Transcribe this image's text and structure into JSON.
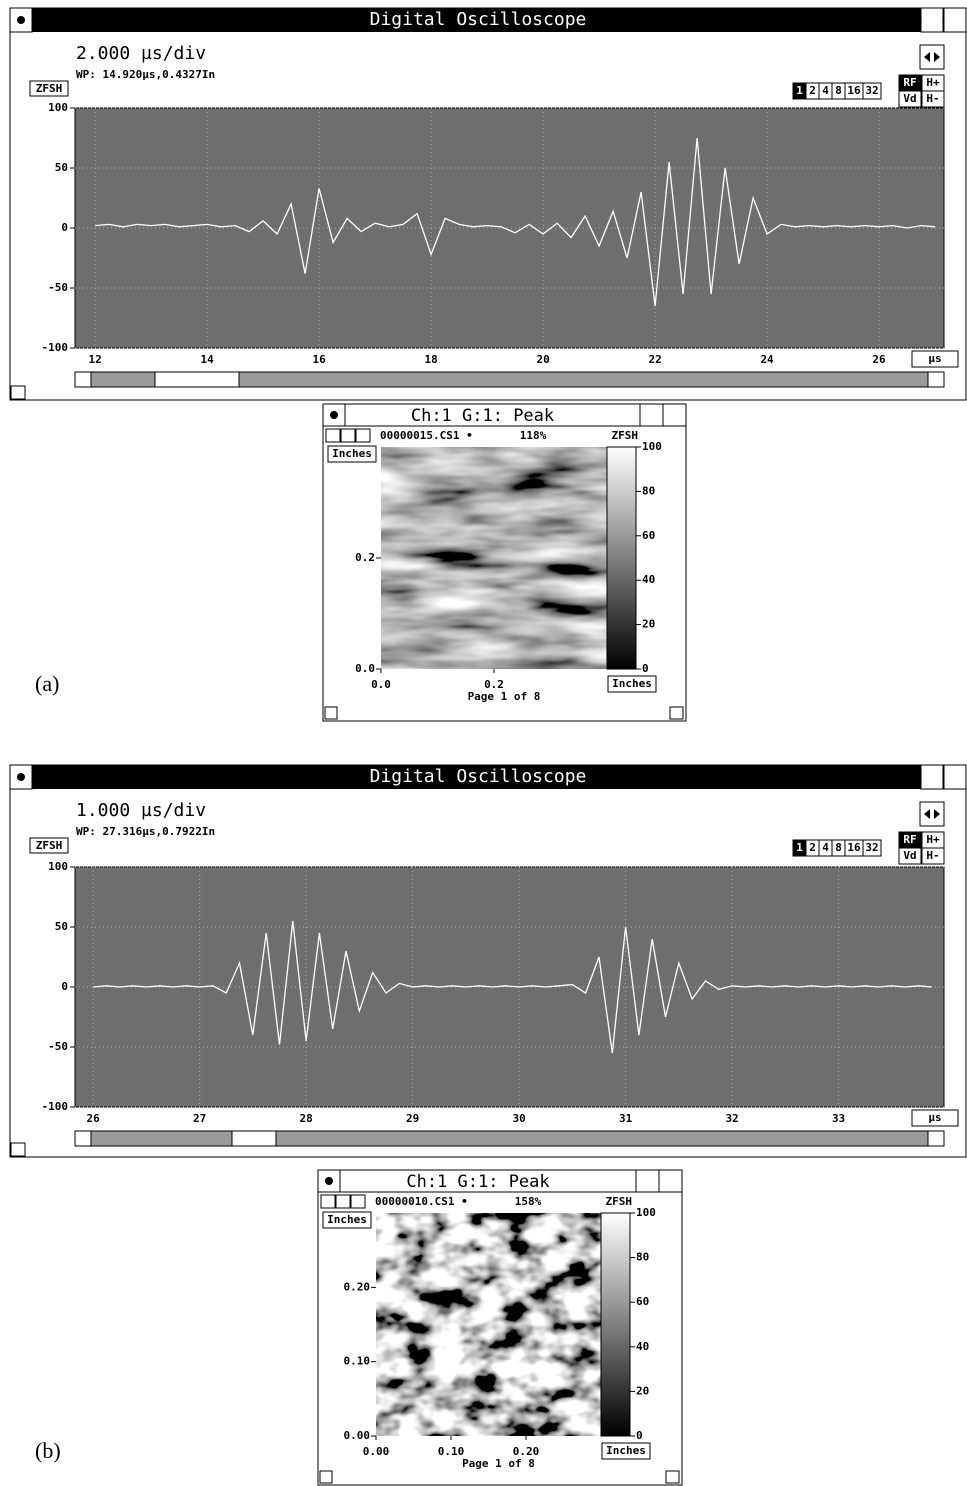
{
  "labels": [
    "(a)",
    "(b)"
  ],
  "chart_data": [
    {
      "type": "line",
      "title": "Digital Oscilloscope",
      "timebase": "2.000 µs/div",
      "cursor": "WP: 14.920µs,0.4327In",
      "scale_button": "ZFSH",
      "zoom_buttons": [
        "1",
        "2",
        "4",
        "8",
        "16",
        "32"
      ],
      "mode_buttons": [
        "RF",
        "H+",
        "Vd",
        "H-"
      ],
      "x_unit": "µs",
      "xlim": [
        11.64,
        27.16
      ],
      "ylim": [
        -100,
        100
      ],
      "xticks": [
        12,
        14,
        16,
        18,
        20,
        22,
        24,
        26
      ],
      "yticks": [
        100,
        50,
        0,
        -50,
        -100
      ],
      "grid": true,
      "background": "#6e6e6e",
      "x": [
        12,
        12.25,
        12.5,
        12.75,
        13,
        13.25,
        13.5,
        13.75,
        14,
        14.25,
        14.5,
        14.75,
        15,
        15.25,
        15.5,
        15.75,
        16,
        16.25,
        16.5,
        16.75,
        17,
        17.25,
        17.5,
        17.75,
        18,
        18.25,
        18.5,
        18.75,
        19,
        19.25,
        19.5,
        19.75,
        20,
        20.25,
        20.5,
        20.75,
        21,
        21.25,
        21.5,
        21.75,
        22,
        22.25,
        22.5,
        22.75,
        23,
        23.25,
        23.5,
        23.75,
        24,
        24.25,
        24.5,
        24.75,
        25,
        25.25,
        25.5,
        25.75,
        26,
        26.25,
        26.5,
        26.75,
        27
      ],
      "series": [
        {
          "color": "#ffffff",
          "values": [
            2,
            3,
            1,
            3,
            2,
            3,
            1,
            2,
            3,
            1,
            2,
            -3,
            6,
            -5,
            20,
            -38,
            33,
            -12,
            8,
            -3,
            4,
            1,
            3,
            12,
            -22,
            8,
            3,
            1,
            2,
            1,
            -4,
            3,
            -5,
            4,
            -8,
            10,
            -15,
            14,
            -25,
            30,
            -65,
            55,
            -55,
            75,
            -55,
            50,
            -30,
            25,
            -5,
            3,
            1,
            2,
            1,
            2,
            1,
            2,
            1,
            2,
            0,
            2,
            1
          ]
        }
      ]
    },
    {
      "type": "line",
      "title": "Digital Oscilloscope",
      "timebase": "1.000 µs/div",
      "cursor": "WP: 27.316µs,0.7922In",
      "scale_button": "ZFSH",
      "zoom_buttons": [
        "1",
        "2",
        "4",
        "8",
        "16",
        "32"
      ],
      "mode_buttons": [
        "RF",
        "H+",
        "Vd",
        "H-"
      ],
      "x_unit": "µs",
      "xlim": [
        25.83,
        33.99
      ],
      "ylim": [
        -100,
        100
      ],
      "xticks": [
        26,
        27,
        28,
        29,
        30,
        31,
        32,
        33
      ],
      "yticks": [
        100,
        50,
        0,
        -50,
        -100
      ],
      "grid": true,
      "background": "#6e6e6e",
      "x": [
        26,
        26.125,
        26.25,
        26.375,
        26.5,
        26.625,
        26.75,
        26.875,
        27,
        27.125,
        27.25,
        27.375,
        27.5,
        27.625,
        27.75,
        27.875,
        28,
        28.125,
        28.25,
        28.375,
        28.5,
        28.625,
        28.75,
        28.875,
        29,
        29.125,
        29.25,
        29.375,
        29.5,
        29.625,
        29.75,
        29.875,
        30,
        30.125,
        30.25,
        30.375,
        30.5,
        30.625,
        30.75,
        30.875,
        31,
        31.125,
        31.25,
        31.375,
        31.5,
        31.625,
        31.75,
        31.875,
        32,
        32.125,
        32.25,
        32.375,
        32.5,
        32.625,
        32.75,
        32.875,
        33,
        33.125,
        33.25,
        33.375,
        33.5,
        33.625,
        33.75,
        33.875
      ],
      "series": [
        {
          "color": "#ffffff",
          "values": [
            0,
            1,
            0,
            1,
            0,
            1,
            0,
            1,
            0,
            1,
            -5,
            20,
            -40,
            45,
            -48,
            55,
            -45,
            45,
            -35,
            30,
            -20,
            12,
            -5,
            3,
            0,
            1,
            0,
            1,
            0,
            1,
            0,
            1,
            0,
            1,
            0,
            1,
            2,
            -5,
            25,
            -55,
            50,
            -40,
            40,
            -25,
            20,
            -10,
            5,
            -2,
            1,
            0,
            1,
            0,
            1,
            0,
            1,
            0,
            1,
            0,
            1,
            0,
            1,
            0,
            1,
            0
          ]
        }
      ]
    }
  ],
  "cscans": [
    {
      "title": "Ch:1 G:1: Peak",
      "file": "00000015.CS1 •",
      "gain": "118%",
      "scale": "ZFSH",
      "y_unit": "Inches",
      "x_unit": "Inches",
      "ylim": [
        0,
        0.4
      ],
      "xlim": [
        0,
        0.4
      ],
      "yticks": [
        {
          "value": 0,
          "label": "0.0"
        },
        0.2
      ],
      "xticks": [
        {
          "value": 0,
          "label": "0.0"
        },
        0.2
      ],
      "colorbar_lim": [
        0,
        100
      ],
      "colorbar_ticks": [
        100,
        80,
        60,
        40,
        20,
        0
      ],
      "page": "Page 1 of 8"
    },
    {
      "title": "Ch:1 G:1: Peak",
      "file": "00000010.CS1 •",
      "gain": "158%",
      "scale": "ZFSH",
      "y_unit": "Inches",
      "x_unit": "Inches",
      "ylim": [
        0,
        0.3
      ],
      "xlim": [
        0,
        0.3
      ],
      "yticks": [
        {
          "value": 0,
          "label": "0.00"
        },
        {
          "value": 0.1,
          "label": "0.10"
        },
        {
          "value": 0.2,
          "label": "0.20"
        }
      ],
      "xticks": [
        {
          "value": 0,
          "label": "0.00"
        },
        {
          "value": 0.1,
          "label": "0.10"
        },
        {
          "value": 0.2,
          "label": "0.20"
        }
      ],
      "colorbar_lim": [
        0,
        100
      ],
      "colorbar_ticks": [
        100,
        80,
        60,
        40,
        20,
        0
      ],
      "page": "Page 1 of 8"
    }
  ]
}
